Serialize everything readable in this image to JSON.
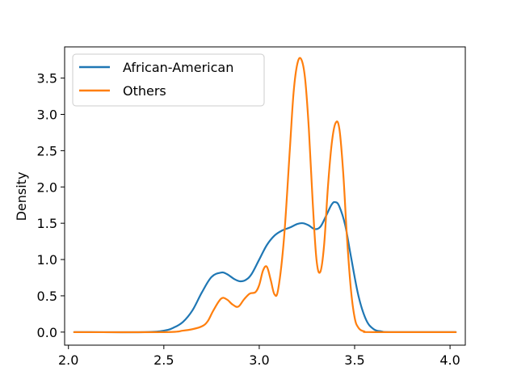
{
  "chart_data": {
    "type": "line",
    "title": "",
    "xlabel": "",
    "ylabel": "Density",
    "xlim": [
      1.98,
      4.08
    ],
    "ylim": [
      -0.18,
      3.93
    ],
    "xticks": [
      2.0,
      2.5,
      3.0,
      3.5,
      4.0
    ],
    "xtick_labels": [
      "2.0",
      "2.5",
      "3.0",
      "3.5",
      "4.0"
    ],
    "yticks": [
      0.0,
      0.5,
      1.0,
      1.5,
      2.0,
      2.5,
      3.0,
      3.5
    ],
    "ytick_labels": [
      "0.0",
      "0.5",
      "1.0",
      "1.5",
      "2.0",
      "2.5",
      "3.0",
      "3.5"
    ],
    "grid": false,
    "legend_position": "top-left",
    "series": [
      {
        "name": "African-American",
        "color": "#1f77b4",
        "x": [
          2.03,
          2.4,
          2.5,
          2.55,
          2.6,
          2.65,
          2.7,
          2.75,
          2.8,
          2.83,
          2.87,
          2.9,
          2.93,
          2.96,
          3.0,
          3.04,
          3.08,
          3.12,
          3.16,
          3.2,
          3.23,
          3.26,
          3.29,
          3.32,
          3.35,
          3.38,
          3.4,
          3.42,
          3.45,
          3.48,
          3.52,
          3.56,
          3.6,
          3.64,
          3.7,
          4.03
        ],
        "y": [
          0.0,
          0.0,
          0.02,
          0.06,
          0.14,
          0.3,
          0.55,
          0.76,
          0.82,
          0.8,
          0.73,
          0.7,
          0.72,
          0.8,
          1.0,
          1.2,
          1.33,
          1.4,
          1.44,
          1.49,
          1.5,
          1.47,
          1.42,
          1.45,
          1.6,
          1.76,
          1.79,
          1.73,
          1.48,
          1.05,
          0.5,
          0.17,
          0.04,
          0.01,
          0.0,
          0.0
        ]
      },
      {
        "name": "Others",
        "color": "#ff7f0e",
        "x": [
          2.03,
          2.5,
          2.6,
          2.65,
          2.7,
          2.73,
          2.76,
          2.8,
          2.83,
          2.86,
          2.89,
          2.92,
          2.95,
          2.98,
          3.0,
          3.02,
          3.04,
          3.06,
          3.08,
          3.1,
          3.13,
          3.16,
          3.18,
          3.2,
          3.22,
          3.24,
          3.26,
          3.28,
          3.3,
          3.32,
          3.34,
          3.36,
          3.38,
          3.4,
          3.42,
          3.44,
          3.46,
          3.48,
          3.5,
          3.52,
          3.55,
          3.6,
          4.03
        ],
        "y": [
          0.0,
          0.0,
          0.02,
          0.04,
          0.08,
          0.15,
          0.3,
          0.46,
          0.45,
          0.38,
          0.35,
          0.45,
          0.53,
          0.55,
          0.65,
          0.85,
          0.9,
          0.72,
          0.52,
          0.6,
          1.3,
          2.5,
          3.3,
          3.7,
          3.76,
          3.5,
          2.8,
          1.8,
          1.0,
          0.83,
          1.2,
          2.0,
          2.6,
          2.88,
          2.8,
          2.2,
          1.3,
          0.6,
          0.2,
          0.06,
          0.01,
          0.0,
          0.0
        ]
      }
    ]
  }
}
